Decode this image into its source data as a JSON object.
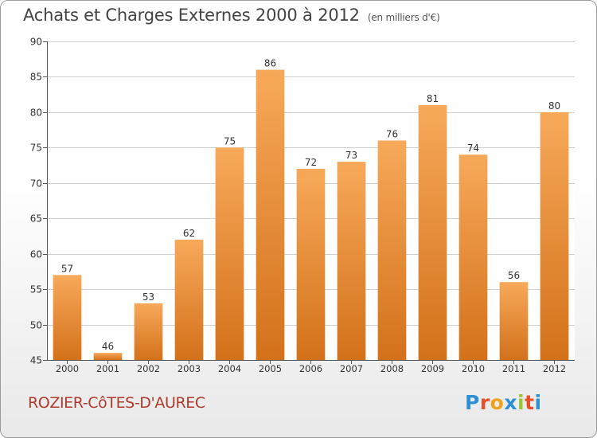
{
  "header": {
    "title": "Achats et Charges Externes 2000 à 2012",
    "unit": "(en milliers d'€)"
  },
  "footer": {
    "commune": "ROZIER-CôTES-D'AUREC",
    "logo": {
      "text": "Proxiti",
      "letter_colors": [
        "#2d8fd5",
        "#e8502b",
        "#f0a21a",
        "#2d8fd5",
        "#9bc43b",
        "#e8502b",
        "#2d8fd5"
      ]
    }
  },
  "colors": {
    "bar_top": "#f7a95a",
    "bar_bottom": "#d3711a",
    "grid": "#cfcfcf",
    "axis_text": "#333333"
  },
  "chart_data": {
    "type": "bar",
    "title": "Achats et Charges Externes 2000 à 2012",
    "subtitle": "(en milliers d'€)",
    "xlabel": "",
    "ylabel": "",
    "categories": [
      "2000",
      "2001",
      "2002",
      "2003",
      "2004",
      "2005",
      "2006",
      "2007",
      "2008",
      "2009",
      "2010",
      "2011",
      "2012"
    ],
    "values": [
      57,
      46,
      53,
      62,
      75,
      86,
      72,
      73,
      76,
      81,
      74,
      56,
      80
    ],
    "ylim": [
      45,
      90
    ],
    "yticks": [
      45,
      50,
      55,
      60,
      65,
      70,
      75,
      80,
      85,
      90
    ],
    "grid": true,
    "legend": "none"
  }
}
